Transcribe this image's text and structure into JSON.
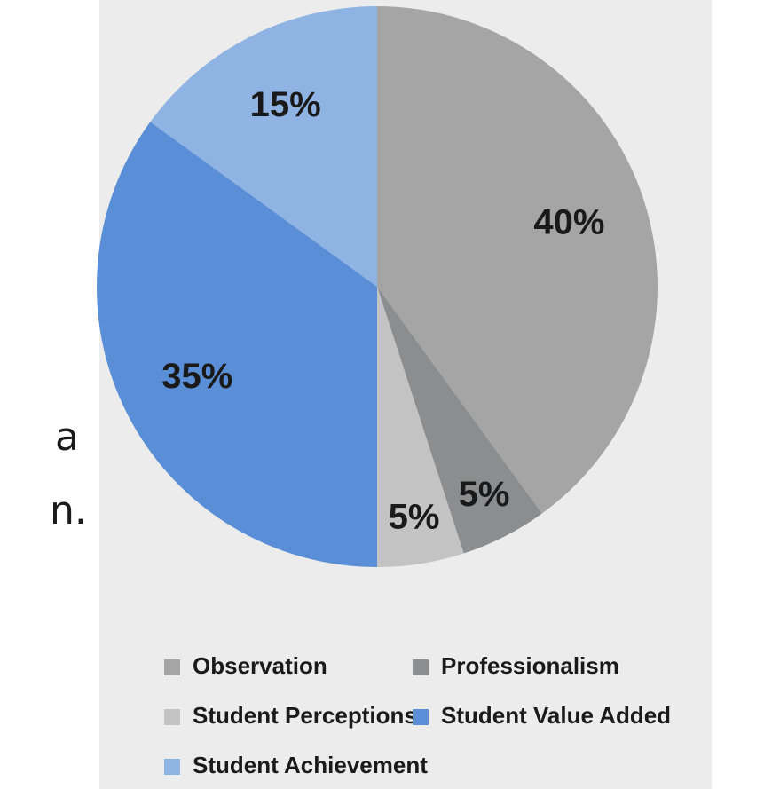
{
  "chart_data": {
    "type": "pie",
    "categories": [
      "Observation",
      "Professionalism",
      "Student Perceptions",
      "Student Value Added",
      "Student Achievement"
    ],
    "values": [
      40,
      5,
      5,
      35,
      15
    ],
    "value_labels": [
      "40%",
      "5%",
      "5%",
      "35%",
      "15%"
    ],
    "colors": [
      "#a5a5a5",
      "#8c8d8f",
      "#c3c3c3",
      "#5a8fd7",
      "#8fb4e3"
    ],
    "legend": "bottom"
  },
  "fragments": [
    "a",
    "n."
  ]
}
